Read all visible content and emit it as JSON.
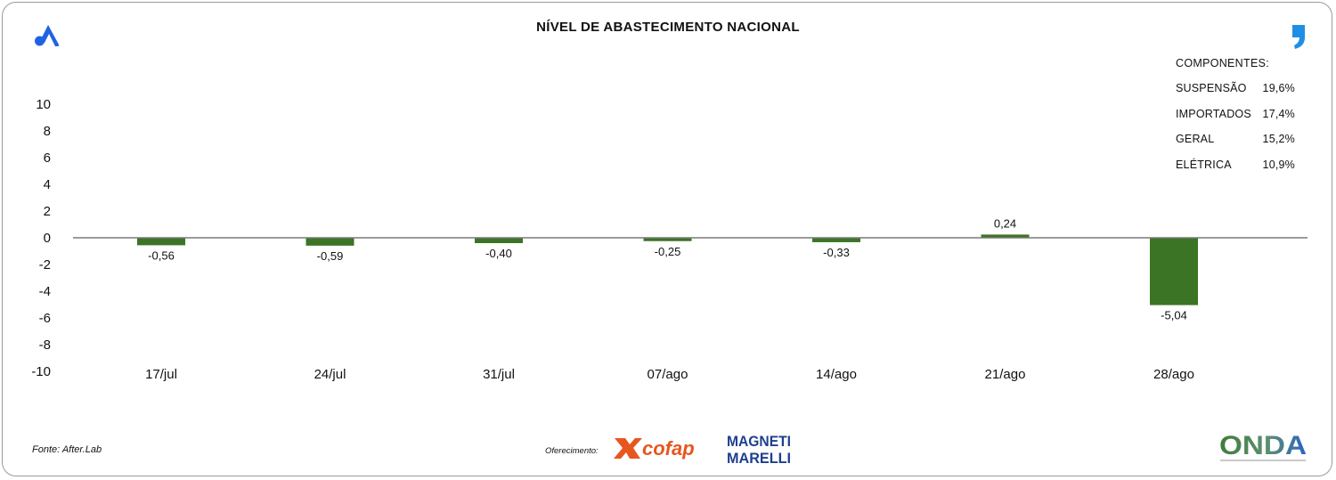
{
  "header": {
    "title": "NÍVEL DE ABASTECIMENTO NACIONAL"
  },
  "components": {
    "title": "COMPONENTES:",
    "items": [
      {
        "label": "SUSPENSÃO",
        "value": "19,6%"
      },
      {
        "label": "IMPORTADOS",
        "value": "17,4%"
      },
      {
        "label": "GERAL",
        "value": "15,2%"
      },
      {
        "label": "ELÉTRICA",
        "value": "10,9%"
      }
    ]
  },
  "footer": {
    "source": "Fonte: After.Lab",
    "sponsor_label": "Oferecimento:",
    "sponsor_1": "cofap",
    "sponsor_2_line1": "MAGNETI",
    "sponsor_2_line2": "MARELLI",
    "brand": "ONDA"
  },
  "colors": {
    "bar": "#3b7425",
    "axis": "#7a7a7a",
    "brand_blue": "#1f62e6",
    "cofap_orange": "#e8561f",
    "marelli_blue": "#1d3f8f"
  },
  "icons": {
    "top_left": "brand-a-logo-icon",
    "top_right": "quote-icon"
  },
  "chart_data": {
    "type": "bar",
    "title": "NÍVEL DE ABASTECIMENTO NACIONAL",
    "categories": [
      "17/jul",
      "24/jul",
      "31/jul",
      "07/ago",
      "14/ago",
      "21/ago",
      "28/ago"
    ],
    "values": [
      -0.56,
      -0.59,
      -0.4,
      -0.25,
      -0.33,
      0.24,
      -5.04
    ],
    "value_labels": [
      "-0,56",
      "-0,59",
      "-0,40",
      "-0,25",
      "-0,33",
      "0,24",
      "-5,04"
    ],
    "yticks": [
      10,
      8,
      6,
      4,
      2,
      0,
      -2,
      -4,
      -6,
      -8,
      -10
    ],
    "ylim": [
      -10,
      10
    ],
    "xlabel": "",
    "ylabel": "",
    "grid": false,
    "legend": "none"
  }
}
